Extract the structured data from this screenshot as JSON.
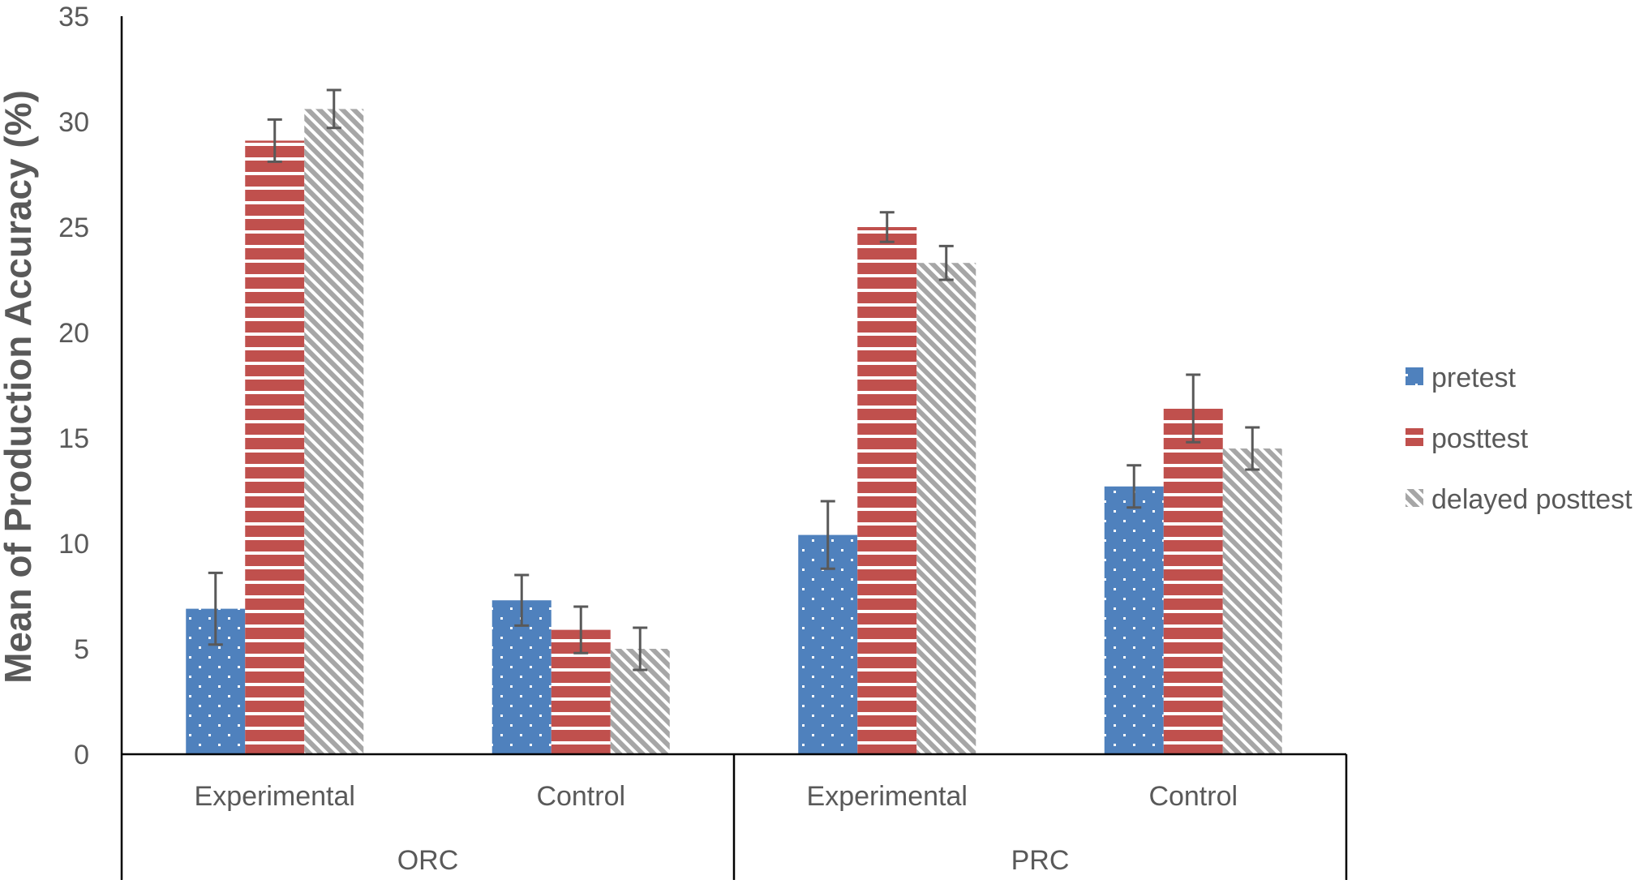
{
  "chart_data": {
    "type": "bar",
    "title": "",
    "xlabel": "",
    "ylabel": "Mean of Production Accuracy (%)",
    "ylim": [
      0,
      35
    ],
    "yticks": [
      0,
      5,
      10,
      15,
      20,
      25,
      30,
      35
    ],
    "groups": [
      {
        "label": "ORC",
        "categories": [
          "Experimental",
          "Control"
        ]
      },
      {
        "label": "PRC",
        "categories": [
          "Experimental",
          "Control"
        ]
      }
    ],
    "categories": [
      "Experimental",
      "Control",
      "Experimental",
      "Control"
    ],
    "series": [
      {
        "name": "pretest",
        "color": "#4F81BD",
        "pattern": "dots",
        "values": [
          6.9,
          7.3,
          10.4,
          12.7
        ],
        "errors": [
          1.7,
          1.2,
          1.6,
          1.0
        ]
      },
      {
        "name": "posttest",
        "color": "#C0504D",
        "pattern": "horizontal-lines",
        "values": [
          29.1,
          5.9,
          25.0,
          16.4
        ],
        "errors": [
          1.0,
          1.1,
          0.7,
          1.6
        ]
      },
      {
        "name": "delayed posttest",
        "color": "#A6A6A6",
        "pattern": "diagonal-stripes",
        "values": [
          30.6,
          5.0,
          23.3,
          14.5
        ],
        "errors": [
          0.9,
          1.0,
          0.8,
          1.0
        ]
      }
    ],
    "legend_position": "right",
    "grid": false
  }
}
